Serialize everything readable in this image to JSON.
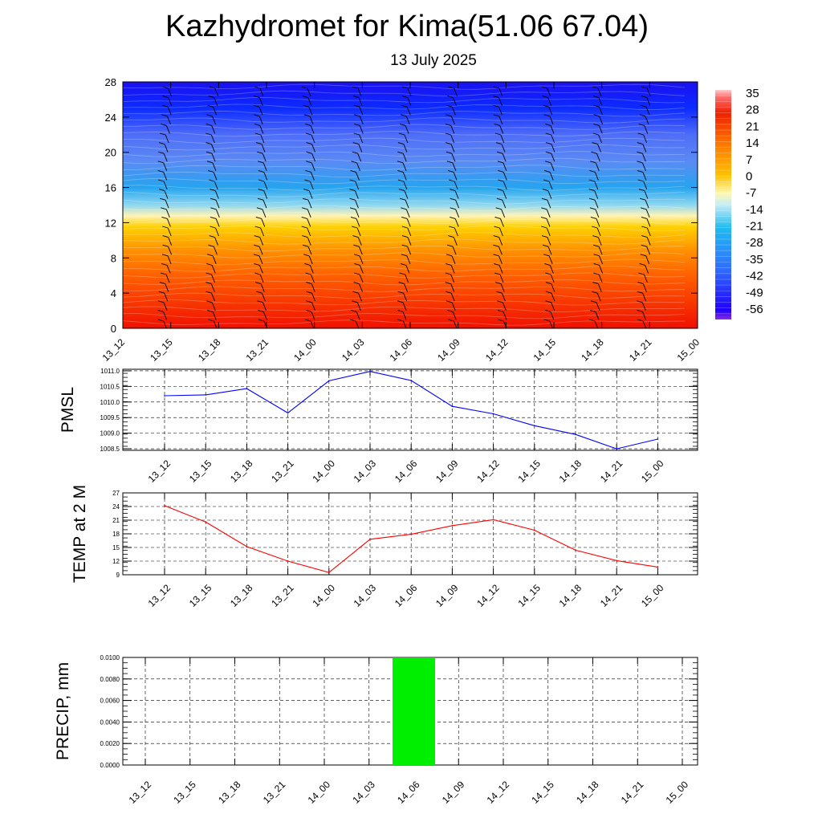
{
  "header": {
    "title": "Kazhydromet for Kima(51.06 67.04)",
    "subtitle": "13 July 2025"
  },
  "chart_data": [
    {
      "type": "heatmap",
      "name": "temperature-cross-section",
      "x_ticks": [
        "13_12",
        "13_15",
        "13_18",
        "13_21",
        "14_00",
        "14_03",
        "14_06",
        "14_09",
        "14_12",
        "14_15",
        "14_18",
        "14_21",
        "15_00"
      ],
      "y_ticks": [
        0,
        4,
        8,
        12,
        16,
        20,
        24,
        28
      ],
      "ylim": [
        0,
        28
      ],
      "colorbar": {
        "labels": [
          "35",
          "28",
          "21",
          "14",
          "7",
          "0",
          "-7",
          "-14",
          "-21",
          "-28",
          "-35",
          "-42",
          "-49",
          "-56"
        ],
        "stops": [
          {
            "pos": 0.0,
            "color": "#8a2be2"
          },
          {
            "pos": 0.04,
            "color": "#2000ff"
          },
          {
            "pos": 0.22,
            "color": "#2f6dff"
          },
          {
            "pos": 0.4,
            "color": "#1fbcf0"
          },
          {
            "pos": 0.5,
            "color": "#c8ecf6"
          },
          {
            "pos": 0.55,
            "color": "#fff8b0"
          },
          {
            "pos": 0.63,
            "color": "#ffc000"
          },
          {
            "pos": 0.75,
            "color": "#ff8000"
          },
          {
            "pos": 0.9,
            "color": "#f02000"
          },
          {
            "pos": 0.97,
            "color": "#ff7070"
          },
          {
            "pos": 1.0,
            "color": "#ffcccc"
          }
        ]
      },
      "field_rows": [
        {
          "level": 0,
          "color": "#f01000"
        },
        {
          "level": 3,
          "color": "#f83800"
        },
        {
          "level": 6,
          "color": "#ff6000"
        },
        {
          "level": 9,
          "color": "#ff9400"
        },
        {
          "level": 11.5,
          "color": "#ffd000"
        },
        {
          "level": 12.8,
          "color": "#fff3b5"
        },
        {
          "level": 14,
          "color": "#8fd8f0"
        },
        {
          "level": 16,
          "color": "#26a4ef"
        },
        {
          "level": 19,
          "color": "#5a8af4"
        },
        {
          "level": 22,
          "color": "#4f6df8"
        },
        {
          "level": 25,
          "color": "#0c2bff"
        },
        {
          "level": 28,
          "color": "#1a10f0"
        }
      ]
    },
    {
      "type": "line",
      "name": "pmsl",
      "ylabel": "PMSL",
      "categories": [
        "13_12",
        "13_15",
        "13_18",
        "13_21",
        "14_00",
        "14_03",
        "14_06",
        "14_09",
        "14_12",
        "14_15",
        "14_18",
        "14_21",
        "15_00"
      ],
      "y_ticks": [
        "1008.5",
        "1009.0",
        "1009.5",
        "1010.0",
        "1010.5",
        "1011.0"
      ],
      "ylim": [
        1008.45,
        1011.05
      ],
      "grid": true,
      "color": "#0000ff",
      "values": [
        1010.2,
        1010.23,
        1010.43,
        1009.65,
        1010.68,
        1010.98,
        1010.69,
        1009.86,
        1009.62,
        1009.24,
        1008.96,
        1008.5,
        1008.81
      ]
    },
    {
      "type": "line",
      "name": "temp-2m",
      "ylabel": "TEMP at 2 M",
      "categories": [
        "13_12",
        "13_15",
        "13_18",
        "13_21",
        "14_00",
        "14_03",
        "14_06",
        "14_09",
        "14_12",
        "14_15",
        "14_18",
        "14_21",
        "15_00"
      ],
      "y_ticks": [
        "9",
        "12",
        "15",
        "18",
        "21",
        "24",
        "27"
      ],
      "ylim": [
        9,
        27
      ],
      "grid": true,
      "color": "#ff0000",
      "values": [
        24.2,
        20.6,
        15.2,
        12.0,
        9.5,
        16.8,
        17.9,
        19.8,
        21.1,
        18.8,
        14.4,
        12.1,
        10.7
      ]
    },
    {
      "type": "bar",
      "name": "precip",
      "ylabel": "PRECIP, mm",
      "categories": [
        "13_12",
        "13_15",
        "13_18",
        "13_21",
        "14_00",
        "14_03",
        "14_06",
        "14_09",
        "14_12",
        "14_15",
        "14_18",
        "14_21",
        "15_00"
      ],
      "y_ticks": [
        "0.0000",
        "0.0020",
        "0.0040",
        "0.0060",
        "0.0080",
        "0.0100"
      ],
      "ylim": [
        0,
        0.01
      ],
      "grid": true,
      "color": "#00ee00",
      "values": [
        0,
        0,
        0,
        0,
        0,
        0,
        0.01,
        0,
        0,
        0,
        0,
        0,
        0
      ]
    }
  ]
}
